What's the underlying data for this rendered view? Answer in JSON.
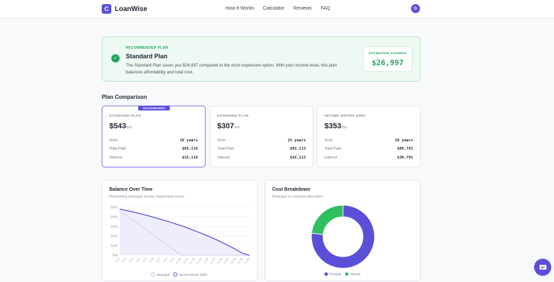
{
  "brand": {
    "logo_letter": "C",
    "name": "LoanWise"
  },
  "nav": [
    "How It Works",
    "Calculator",
    "Reviews",
    "FAQ"
  ],
  "avatar_initial": "G",
  "recommended": {
    "eyebrow": "RECOMMENDED PLAN",
    "title": "Standard Plan",
    "description": "The Standard Plan saves you $26,997 compared to the most expensive option. With your income level, this plan balances affordability and total cost.",
    "savings_label": "ESTIMATED SAVINGS",
    "savings_value": "$26,997"
  },
  "comparison": {
    "title": "Plan Comparison",
    "badge": "RECOMMENDED",
    "row_labels": {
      "term": "Term",
      "total": "Total Paid",
      "interest": "Interest"
    },
    "plans": [
      {
        "label": "STANDARD PLAN",
        "price": "$543",
        "per": "/mo",
        "term": "10 years",
        "total": "$65,116",
        "interest": "$15,116"
      },
      {
        "label": "EXTENDED PLAN",
        "price": "$307",
        "per": "/mo",
        "term": "25 years",
        "total": "$92,113",
        "interest": "$42,113"
      },
      {
        "label": "INCOME-DRIVEN (IDR)",
        "price": "$353",
        "per": "/mo",
        "term": "20 years",
        "total": "$80,791",
        "interest": "$30,791"
      }
    ]
  },
  "balance_chart": {
    "title": "Balance Over Time",
    "subtitle": "Remaining principal across repayment terms",
    "legend": [
      "Standard",
      "Income-Driven (IDR)"
    ]
  },
  "cost_chart": {
    "title": "Cost Breakdown",
    "subtitle": "Principal vs. interest allocation",
    "legend": [
      "Principal",
      "Interest"
    ]
  },
  "chart_data": [
    {
      "type": "area",
      "title": "Balance Over Time",
      "subtitle": "Remaining principal across repayment terms",
      "ylim": [
        0,
        50000
      ],
      "yticks": [
        "$0k",
        "$10k",
        "$20k",
        "$30k",
        "$40k",
        "$50k"
      ],
      "x": [
        "Yr 1",
        "Yr 2",
        "Yr 3",
        "Yr 4",
        "Yr 5",
        "Yr 6",
        "Yr 7",
        "Yr 8",
        "Yr 9",
        "Yr 10",
        "Yr 11",
        "Yr 12",
        "Yr 13",
        "Yr 14",
        "Yr 15",
        "Yr 16",
        "Yr 17",
        "Yr 18",
        "Yr 19",
        "Yr 20"
      ],
      "series": [
        {
          "name": "Standard",
          "color": "#b8b3ee",
          "values": [
            45500,
            41000,
            36200,
            31300,
            26300,
            21100,
            15900,
            10700,
            5400,
            0,
            0,
            0,
            0,
            0,
            0,
            0,
            0,
            0,
            0,
            0
          ]
        },
        {
          "name": "Income-Driven (IDR)",
          "color": "#5b4fd8",
          "values": [
            48000,
            46600,
            45000,
            43300,
            41500,
            39500,
            37500,
            35400,
            33100,
            30700,
            28200,
            25500,
            22700,
            19800,
            16700,
            13300,
            9800,
            6000,
            2000,
            0
          ]
        }
      ],
      "grid": true,
      "legend_position": "bottom"
    },
    {
      "type": "pie",
      "donut": true,
      "title": "Cost Breakdown",
      "subtitle": "Principal vs. interest allocation",
      "labels": [
        "Principal",
        "Interest"
      ],
      "values": [
        50000,
        15116
      ],
      "colors": [
        "#5b4fd8",
        "#2fbf5e"
      ],
      "legend_position": "bottom"
    }
  ],
  "colors": {
    "accent": "#5b4fd8",
    "success": "#22a55b",
    "interest": "#2fbf5e"
  },
  "icons": {
    "check": "check-circle-icon",
    "chat": "chat-icon"
  }
}
